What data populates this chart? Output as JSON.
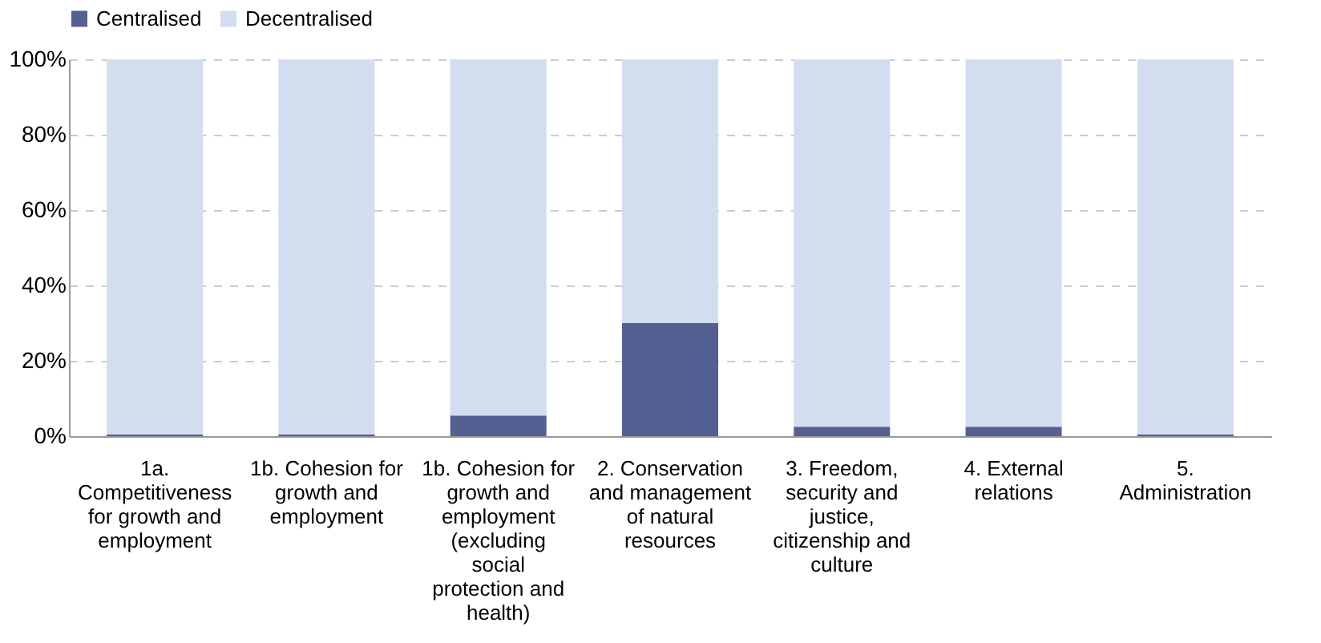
{
  "chart_data": {
    "type": "bar",
    "stacked": true,
    "categories": [
      "1a. Competitiveness for growth and employment",
      "1b. Cohesion for growth and employment",
      "1b. Cohesion for growth and employment (excluding social protection and health)",
      "2. Conservation and management of natural resources",
      "3. Freedom, security and justice, citizenship and culture",
      "4. External relations",
      "5. Administration"
    ],
    "series": [
      {
        "name": "Centralised",
        "color": "#545f94",
        "values": [
          0.5,
          0.5,
          5.5,
          30,
          2.5,
          2.5,
          0.5
        ]
      },
      {
        "name": "Decentralised",
        "color": "#d3ddf0",
        "values": [
          99.5,
          99.5,
          94.5,
          70,
          97.5,
          97.5,
          99.5
        ]
      }
    ],
    "ylim": [
      0,
      100
    ],
    "yticks": [
      {
        "value": 0,
        "label": "0%"
      },
      {
        "value": 20,
        "label": "20%"
      },
      {
        "value": 40,
        "label": "40%"
      },
      {
        "value": 60,
        "label": "60%"
      },
      {
        "value": 80,
        "label": "80%"
      },
      {
        "value": 100,
        "label": "100%"
      }
    ],
    "grid": "y",
    "legend": "top"
  }
}
